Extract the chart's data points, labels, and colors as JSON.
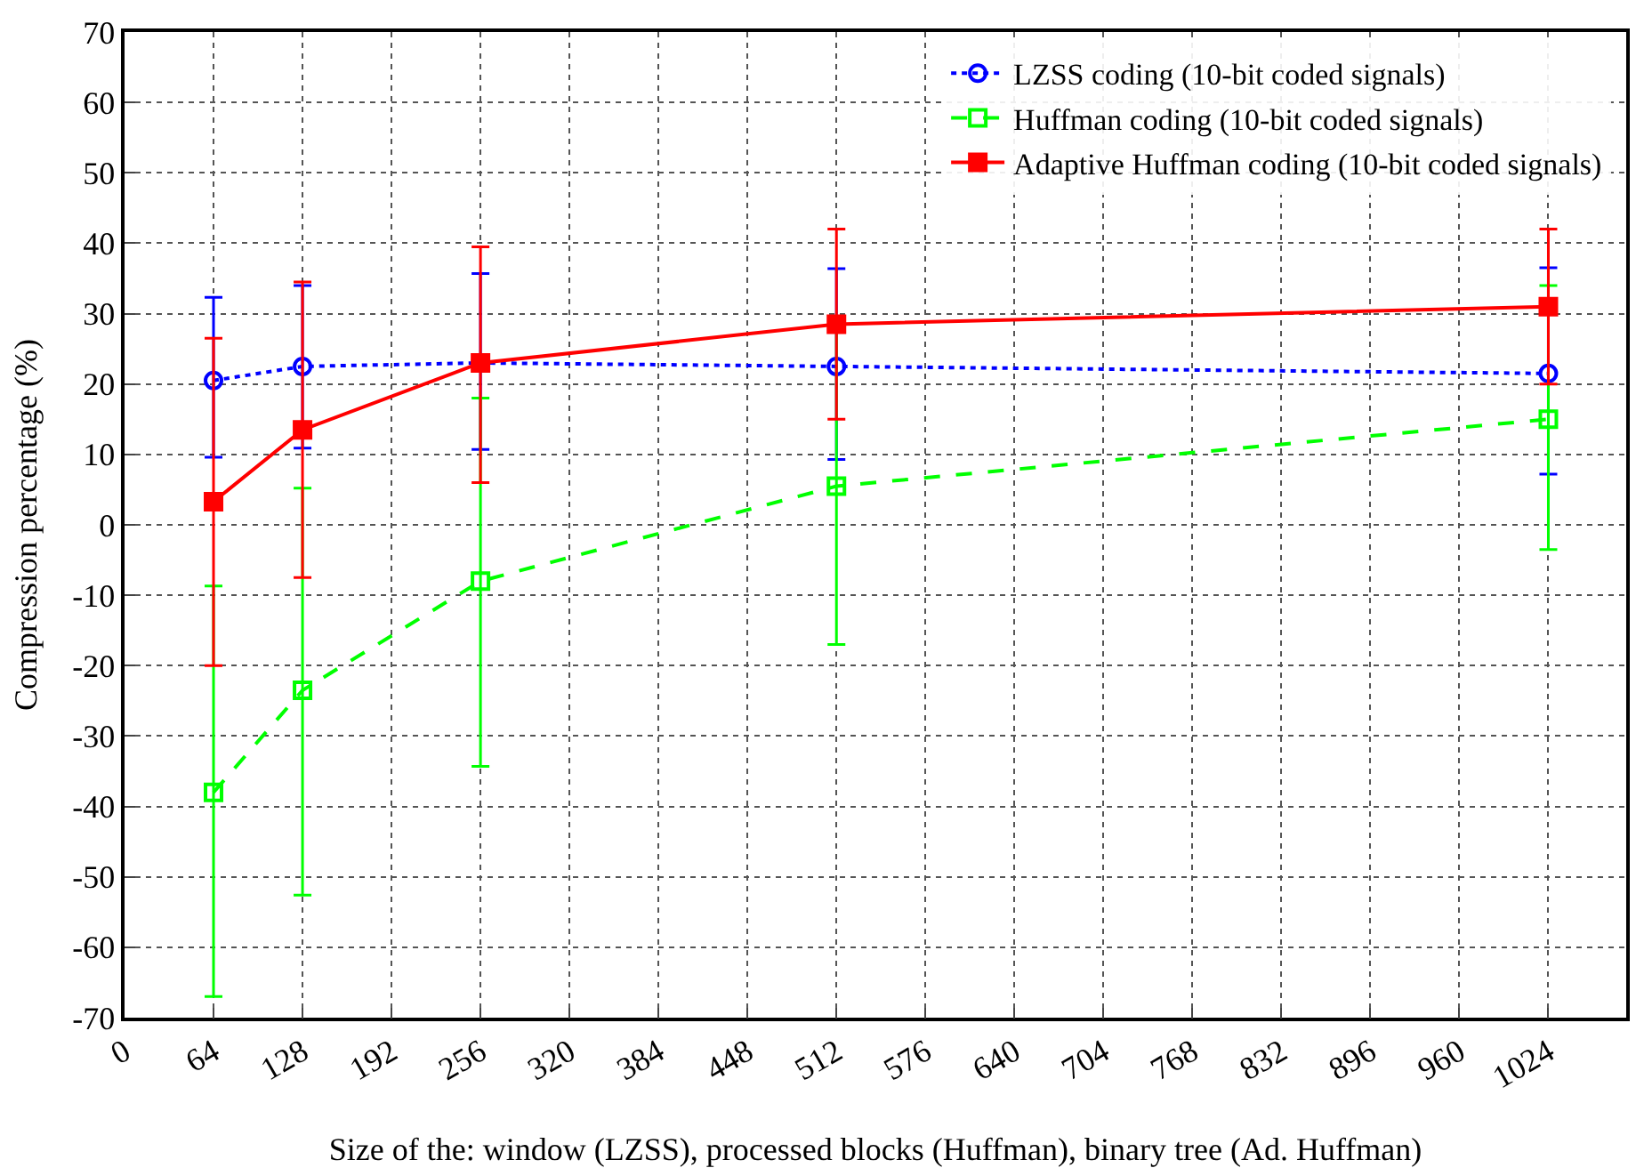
{
  "chart_data": {
    "type": "line",
    "xlabel": "Size of the: window (LZSS), processed blocks (Huffman), binary tree (Ad. Huffman)",
    "ylabel": "Compression percentage (%)",
    "x": [
      64,
      128,
      256,
      512,
      1024
    ],
    "series": [
      {
        "name": "LZSS coding (10-bit coded signals)",
        "color": "#0000ff",
        "marker": "circle-open",
        "line_style": "dotted",
        "values": [
          20.5,
          22.5,
          23,
          22.5,
          21.5
        ],
        "errors": [
          [
            9.6,
            32.3
          ],
          [
            10.9,
            34
          ],
          [
            10.7,
            35.7
          ],
          [
            9.3,
            36.4
          ],
          [
            7.2,
            36.5
          ]
        ]
      },
      {
        "name": "Huffman coding (10-bit coded signals)",
        "color": "#00ff00",
        "marker": "square-open",
        "line_style": "dashed",
        "values": [
          -38,
          -23.5,
          -8,
          5.5,
          15
        ],
        "errors": [
          [
            -67,
            -8.7
          ],
          [
            -52.6,
            5.2
          ],
          [
            -34.3,
            18
          ],
          [
            -17,
            27.5
          ],
          [
            -3.5,
            34
          ]
        ]
      },
      {
        "name": "Adaptive Huffman coding (10-bit coded signals)",
        "color": "#ff0000",
        "marker": "square",
        "line_style": "solid",
        "values": [
          3.3,
          13.5,
          23,
          28.5,
          31
        ],
        "errors": [
          [
            -20,
            26.5
          ],
          [
            -7.5,
            34.5
          ],
          [
            6,
            39.5
          ],
          [
            15,
            42
          ],
          [
            20,
            42
          ]
        ]
      }
    ],
    "xlim": [
      0,
      1080
    ],
    "xticks": [
      0,
      64,
      128,
      192,
      256,
      320,
      384,
      448,
      512,
      576,
      640,
      704,
      768,
      832,
      896,
      960,
      1024
    ],
    "ylim": [
      -70,
      70
    ],
    "yticks": [
      -70,
      -60,
      -50,
      -40,
      -30,
      -20,
      -10,
      0,
      10,
      20,
      30,
      40,
      50,
      60,
      70
    ],
    "grid": true,
    "legend": "top right"
  }
}
